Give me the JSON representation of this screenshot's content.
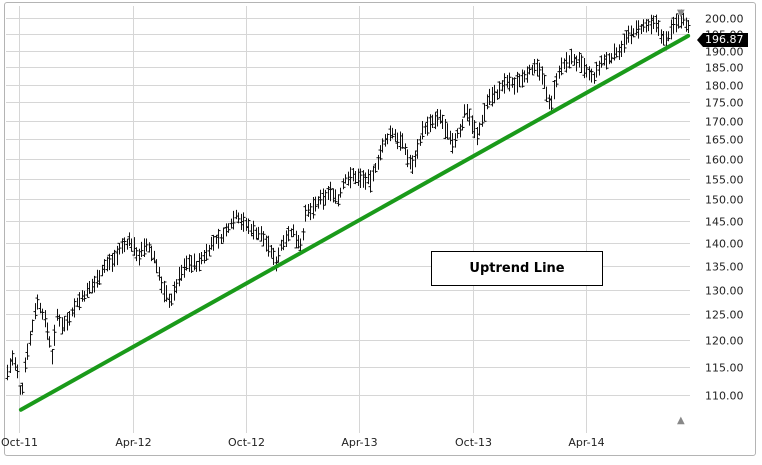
{
  "chart_data": {
    "type": "bar",
    "subtype": "ohlc-price-bars",
    "x_tick_labels": [
      "Oct-11",
      "Apr-12",
      "Oct-12",
      "Apr-13",
      "Oct-13",
      "Apr-14"
    ],
    "y_tick_labels": [
      "110.00",
      "115.00",
      "120.00",
      "125.00",
      "130.00",
      "135.00",
      "140.00",
      "145.00",
      "150.00",
      "155.00",
      "160.00",
      "165.00",
      "170.00",
      "175.00",
      "180.00",
      "185.00",
      "190.00",
      "195.00",
      "200.00"
    ],
    "y_scale": "log",
    "ylim": [
      104.5,
      202
    ],
    "xlim": [
      "2011-09-10",
      "2014-09-15"
    ],
    "grid": true,
    "last_price_label": "196.87",
    "annotation": "Uptrend Line",
    "trend_line": {
      "color": "#1a9a1a",
      "points": [
        [
          "2011-10-04",
          107.4
        ],
        [
          "2014-09-12",
          194.5
        ]
      ]
    },
    "series": [
      {
        "points": [
          [
            "2011-09-12",
            114.0
          ],
          [
            "2011-09-20",
            116.5
          ],
          [
            "2011-09-28",
            113.8
          ],
          [
            "2011-10-04",
            109.2
          ],
          [
            "2011-10-12",
            117.5
          ],
          [
            "2011-10-20",
            121.0
          ],
          [
            "2011-10-28",
            127.8
          ],
          [
            "2011-11-07",
            125.3
          ],
          [
            "2011-11-15",
            122.0
          ],
          [
            "2011-11-23",
            117.2
          ],
          [
            "2011-12-01",
            124.5
          ],
          [
            "2011-12-12",
            122.8
          ],
          [
            "2011-12-21",
            124.7
          ],
          [
            "2012-01-03",
            127.5
          ],
          [
            "2012-01-17",
            129.2
          ],
          [
            "2012-01-31",
            131.5
          ],
          [
            "2012-02-14",
            134.8
          ],
          [
            "2012-02-28",
            136.2
          ],
          [
            "2012-03-13",
            139.0
          ],
          [
            "2012-03-27",
            140.5
          ],
          [
            "2012-04-10",
            137.2
          ],
          [
            "2012-04-24",
            139.5
          ],
          [
            "2012-05-08",
            136.0
          ],
          [
            "2012-05-18",
            130.2
          ],
          [
            "2012-06-01",
            127.6
          ],
          [
            "2012-06-15",
            132.8
          ],
          [
            "2012-06-29",
            136.1
          ],
          [
            "2012-07-13",
            135.0
          ],
          [
            "2012-07-27",
            137.8
          ],
          [
            "2012-08-10",
            140.4
          ],
          [
            "2012-08-24",
            141.3
          ],
          [
            "2012-09-14",
            146.5
          ],
          [
            "2012-09-28",
            144.2
          ],
          [
            "2012-10-12",
            142.8
          ],
          [
            "2012-10-26",
            141.5
          ],
          [
            "2012-11-09",
            138.2
          ],
          [
            "2012-11-16",
            135.5
          ],
          [
            "2012-11-30",
            141.3
          ],
          [
            "2012-12-14",
            142.4
          ],
          [
            "2012-12-28",
            139.5
          ],
          [
            "2013-01-04",
            146.2
          ],
          [
            "2013-01-25",
            149.3
          ],
          [
            "2013-02-15",
            152.1
          ],
          [
            "2013-02-25",
            149.7
          ],
          [
            "2013-03-08",
            155.0
          ],
          [
            "2013-03-22",
            155.6
          ],
          [
            "2013-04-05",
            155.2
          ],
          [
            "2013-04-19",
            154.3
          ],
          [
            "2013-05-03",
            161.3
          ],
          [
            "2013-05-21",
            166.9
          ],
          [
            "2013-06-07",
            164.5
          ],
          [
            "2013-06-24",
            157.9
          ],
          [
            "2013-07-12",
            167.7
          ],
          [
            "2013-07-26",
            169.3
          ],
          [
            "2013-08-09",
            170.8
          ],
          [
            "2013-08-27",
            163.5
          ],
          [
            "2013-09-13",
            168.9
          ],
          [
            "2013-09-19",
            173.8
          ],
          [
            "2013-10-08",
            165.5
          ],
          [
            "2013-10-25",
            176.6
          ],
          [
            "2013-11-08",
            177.3
          ],
          [
            "2013-11-22",
            180.8
          ],
          [
            "2013-12-06",
            180.0
          ],
          [
            "2013-12-31",
            184.7
          ],
          [
            "2014-01-15",
            184.1
          ],
          [
            "2014-02-03",
            174.2
          ],
          [
            "2014-02-14",
            183.7
          ],
          [
            "2014-03-07",
            187.7
          ],
          [
            "2014-03-21",
            186.2
          ],
          [
            "2014-04-11",
            181.5
          ],
          [
            "2014-04-25",
            186.3
          ],
          [
            "2014-05-09",
            187.7
          ],
          [
            "2014-05-23",
            190.3
          ],
          [
            "2014-06-06",
            194.0
          ],
          [
            "2014-06-20",
            196.1
          ],
          [
            "2014-07-03",
            197.0
          ],
          [
            "2014-07-24",
            198.2
          ],
          [
            "2014-08-05",
            192.1
          ],
          [
            "2014-08-22",
            198.9
          ],
          [
            "2014-09-05",
            200.5
          ],
          [
            "2014-09-12",
            196.87
          ]
        ]
      }
    ]
  }
}
